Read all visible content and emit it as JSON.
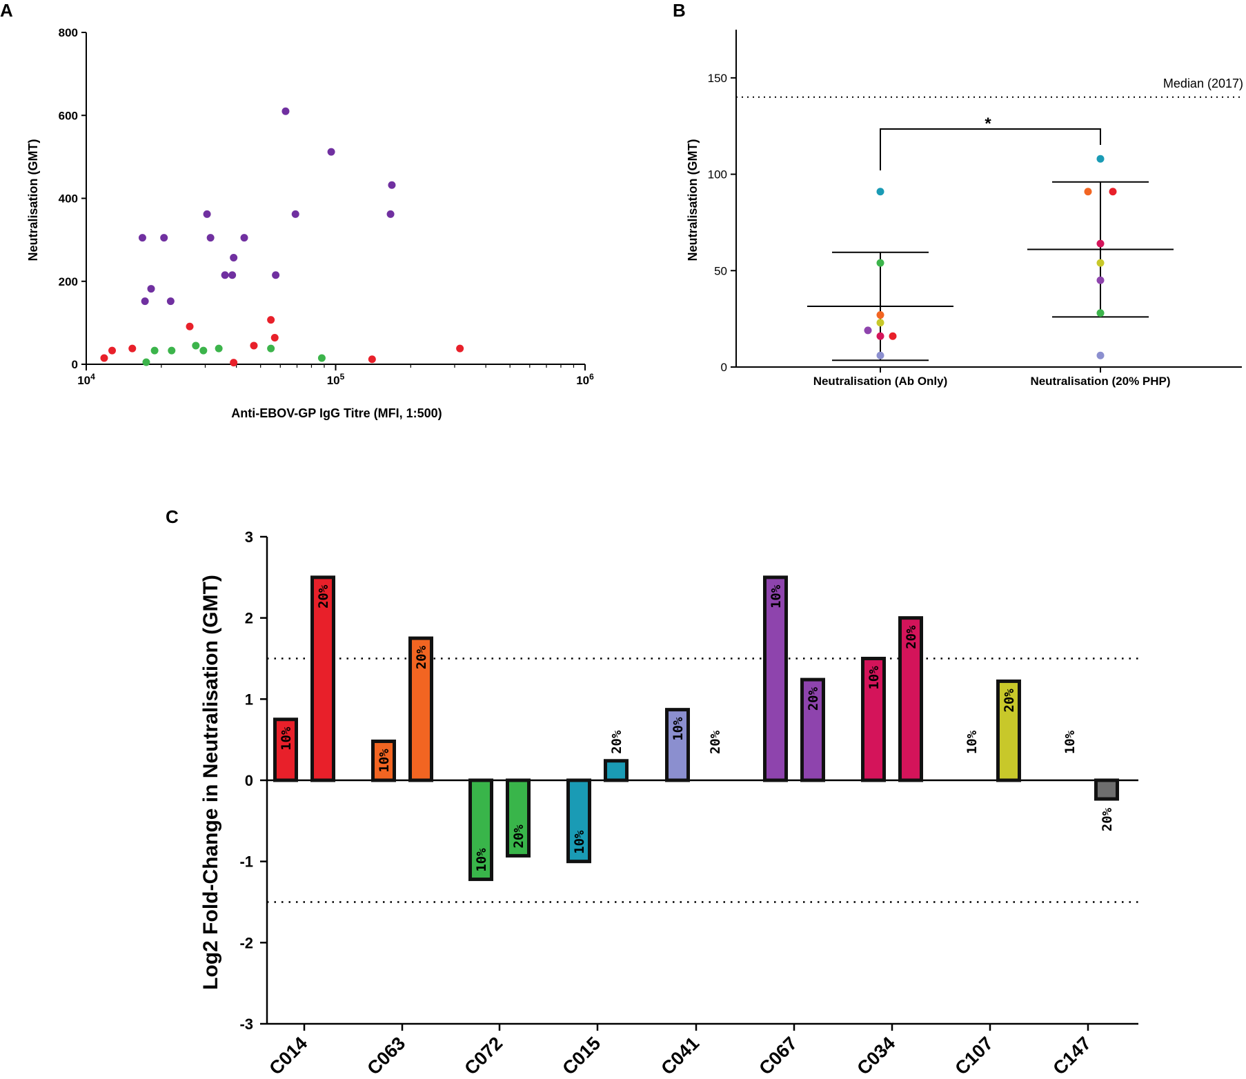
{
  "chart_data": [
    {
      "id": "A",
      "type": "scatter",
      "panel_label": "A",
      "xlabel": "Anti-EBOV-GP IgG Titre (MFI, 1:500)",
      "ylabel": "Neutralisation (GMT)",
      "xscale": "log",
      "xlim": [
        10000,
        1000000
      ],
      "ylim": [
        0,
        800
      ],
      "yticks": [
        "0",
        "200",
        "400",
        "600",
        "800"
      ],
      "xticks": [
        {
          "base": "10",
          "exp": "4"
        },
        {
          "base": "10",
          "exp": "5"
        },
        {
          "base": "10",
          "exp": "6"
        }
      ],
      "series": [
        {
          "name": "purple",
          "color": "#7030a0",
          "points": [
            [
              16800,
              305
            ],
            [
              20500,
              305
            ],
            [
              30500,
              362
            ],
            [
              31500,
              305
            ],
            [
              43000,
              305
            ],
            [
              39000,
              257
            ],
            [
              36000,
              215
            ],
            [
              38500,
              215
            ],
            [
              57500,
              215
            ],
            [
              63000,
              610
            ],
            [
              69000,
              362
            ],
            [
              96000,
              512
            ],
            [
              168000,
              432
            ],
            [
              166000,
              362
            ],
            [
              17200,
              152
            ],
            [
              18200,
              182
            ],
            [
              21800,
              152
            ]
          ]
        },
        {
          "name": "red",
          "color": "#e8202a",
          "points": [
            [
              11800,
              15
            ],
            [
              12700,
              33
            ],
            [
              15300,
              38
            ],
            [
              26000,
              91
            ],
            [
              47000,
              45
            ],
            [
              55000,
              107
            ],
            [
              57000,
              64
            ],
            [
              39000,
              4
            ],
            [
              140000,
              12
            ],
            [
              315000,
              38
            ]
          ]
        },
        {
          "name": "green",
          "color": "#3cb44b",
          "points": [
            [
              17400,
              5
            ],
            [
              18800,
              33
            ],
            [
              22000,
              33
            ],
            [
              27500,
              45
            ],
            [
              29500,
              33
            ],
            [
              34000,
              38
            ],
            [
              55000,
              38
            ],
            [
              88000,
              15
            ]
          ]
        }
      ]
    },
    {
      "id": "B",
      "type": "scatter",
      "panel_label": "B",
      "ylabel": "Neutralisation (GMT)",
      "ylim": [
        0,
        175
      ],
      "yticks": [
        "0",
        "50",
        "100",
        "150"
      ],
      "categories": [
        "Neutralisation (Ab Only)",
        "Neutralisation (20% PHP)"
      ],
      "reference_line": {
        "value": 140,
        "label": "Median (2017)"
      },
      "significance": "*",
      "groups": [
        {
          "category": "Neutralisation (Ab Only)",
          "mean": 31.5,
          "sd_low": 3.5,
          "sd_high": 59.5,
          "points": [
            {
              "value": 91,
              "color": "#1a9bb5",
              "offset": 0
            },
            {
              "value": 54,
              "color": "#3cb44b",
              "offset": 0
            },
            {
              "value": 27,
              "color": "#f26522",
              "offset": 0
            },
            {
              "value": 23,
              "color": "#c8c82a",
              "offset": 0
            },
            {
              "value": 19,
              "color": "#8e44ad",
              "offset": -1
            },
            {
              "value": 16,
              "color": "#d4145a",
              "offset": 0
            },
            {
              "value": 16,
              "color": "#e8202a",
              "offset": 1
            },
            {
              "value": 6,
              "color": "#8b8fcf",
              "offset": 0
            }
          ]
        },
        {
          "category": "Neutralisation (20% PHP)",
          "mean": 61,
          "sd_low": 26,
          "sd_high": 96,
          "points": [
            {
              "value": 108,
              "color": "#1a9bb5",
              "offset": 0
            },
            {
              "value": 91,
              "color": "#f26522",
              "offset": -1
            },
            {
              "value": 91,
              "color": "#e8202a",
              "offset": 1
            },
            {
              "value": 64,
              "color": "#d4145a",
              "offset": 0
            },
            {
              "value": 54,
              "color": "#c8c82a",
              "offset": 0
            },
            {
              "value": 45,
              "color": "#8e44ad",
              "offset": 0
            },
            {
              "value": 28,
              "color": "#3cb44b",
              "offset": 0
            },
            {
              "value": 6,
              "color": "#8b8fcf",
              "offset": 0
            }
          ]
        }
      ]
    },
    {
      "id": "C",
      "type": "bar",
      "panel_label": "C",
      "ylabel": "Log2 Fold-Change in Neutralisation (GMT)",
      "ylim": [
        -3,
        3
      ],
      "yticks": [
        "-3",
        "-2",
        "-1",
        "0",
        "1",
        "2",
        "3"
      ],
      "reference_lines": [
        1.5,
        -1.5
      ],
      "categories": [
        "C014",
        "C063",
        "C072",
        "C015",
        "C041",
        "C067",
        "C034",
        "C107",
        "C147"
      ],
      "groups": [
        {
          "category": "C014",
          "color": "#e8202a",
          "bars": [
            {
              "label": "10%",
              "value": 0.75
            },
            {
              "label": "20%",
              "value": 2.5
            }
          ]
        },
        {
          "category": "C063",
          "color": "#f26522",
          "bars": [
            {
              "label": "10%",
              "value": 0.48
            },
            {
              "label": "20%",
              "value": 1.75
            }
          ]
        },
        {
          "category": "C072",
          "color": "#39b54a",
          "bars": [
            {
              "label": "10%",
              "value": -1.22
            },
            {
              "label": "20%",
              "value": -0.93
            }
          ]
        },
        {
          "category": "C015",
          "color": "#1a9bb5",
          "bars": [
            {
              "label": "10%",
              "value": -1.0
            },
            {
              "label": "20%",
              "value": 0.24
            }
          ]
        },
        {
          "category": "C041",
          "color": "#8b8fcf",
          "bars": [
            {
              "label": "10%",
              "value": 0.87
            },
            {
              "label": "20%",
              "value": 0
            }
          ]
        },
        {
          "category": "C067",
          "color": "#8e44ad",
          "bars": [
            {
              "label": "10%",
              "value": 2.5
            },
            {
              "label": "20%",
              "value": 1.24
            }
          ]
        },
        {
          "category": "C034",
          "color": "#d4145a",
          "bars": [
            {
              "label": "10%",
              "value": 1.5
            },
            {
              "label": "20%",
              "value": 2.0
            }
          ]
        },
        {
          "category": "C107",
          "color": "#c8c82a",
          "bars": [
            {
              "label": "10%",
              "value": 0
            },
            {
              "label": "20%",
              "value": 1.22
            }
          ]
        },
        {
          "category": "C147",
          "color": "#6e6e6e",
          "bars": [
            {
              "label": "10%",
              "value": 0
            },
            {
              "label": "20%",
              "value": -0.23
            }
          ]
        }
      ]
    }
  ]
}
